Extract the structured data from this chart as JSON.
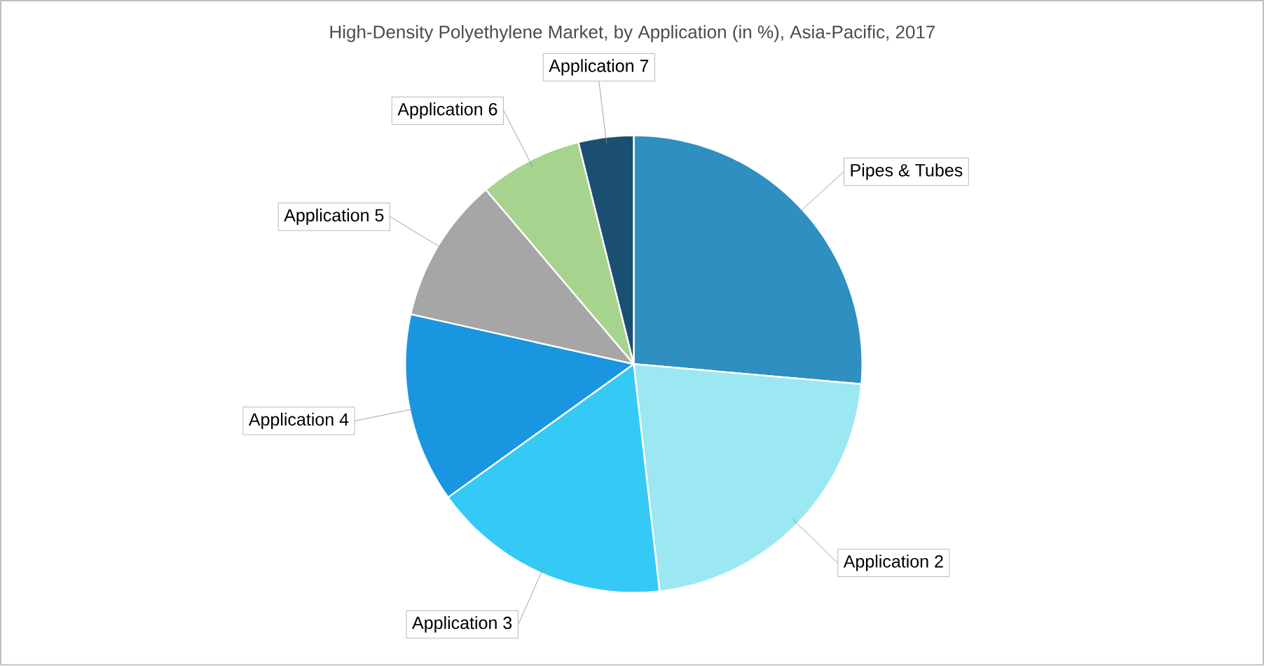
{
  "chart_data": {
    "type": "pie",
    "title": "High-Density Polyethylene Market, by Application (in %), Asia-Pacific, 2017",
    "categories": [
      "Pipes & Tubes",
      "Application 2",
      "Application 3",
      "Application 4",
      "Application 5",
      "Application 6",
      "Application 7"
    ],
    "values": [
      26.4,
      21.8,
      16.9,
      13.4,
      10.3,
      7.3,
      3.9
    ],
    "colors": [
      "#2e8fc0",
      "#9be8f2",
      "#35c9f5",
      "#1a95e0",
      "#a6a6a6",
      "#a6d38e",
      "#1b4f72"
    ]
  }
}
